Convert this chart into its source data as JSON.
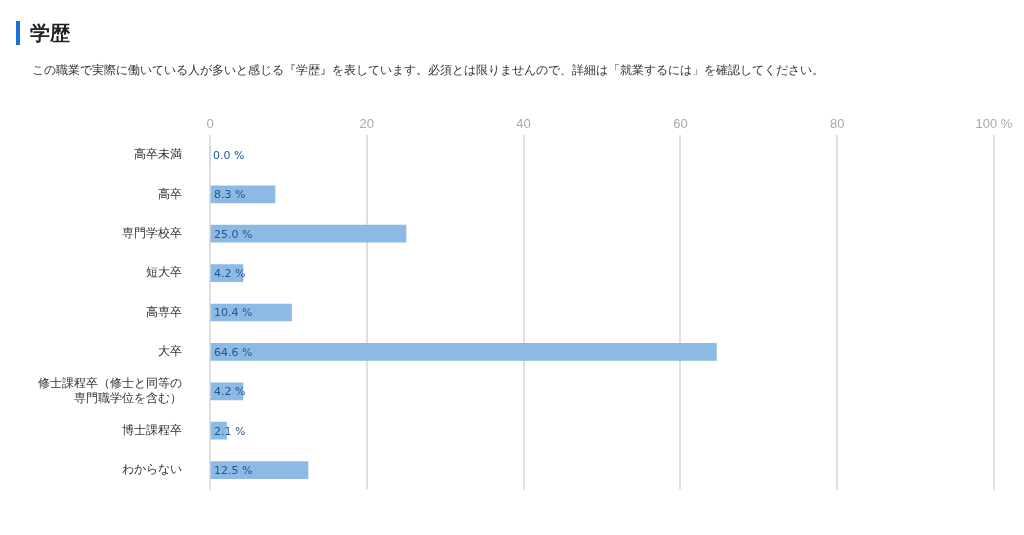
{
  "chart_data": {
    "type": "bar",
    "orientation": "horizontal",
    "title": "学歴",
    "subtitle": "この職業で実際に働いている人が多いと感じる『学歴』を表しています。必須とは限りませんので、詳細は「就業するには」を確認してください。",
    "categories": [
      "高卒未満",
      "高卒",
      "専門学校卒",
      "短大卒",
      "高専卒",
      "大卒",
      "修士課程卒（修士と同等の専門職学位を含む）",
      "博士課程卒",
      "わからない"
    ],
    "values": [
      0.0,
      8.3,
      25.0,
      4.2,
      10.4,
      64.6,
      4.2,
      2.1,
      12.5
    ],
    "value_labels": [
      "0.0 %",
      "8.3 %",
      "25.0 %",
      "4.2 %",
      "10.4 %",
      "64.6 %",
      "4.2 %",
      "2.1 %",
      "12.5 %"
    ],
    "color": "#8dbae4",
    "xlim": [
      0,
      100
    ],
    "xticks": [
      0,
      20,
      40,
      60,
      80,
      {
        "value": 100,
        "label": "100 %"
      }
    ],
    "grid": "x"
  }
}
